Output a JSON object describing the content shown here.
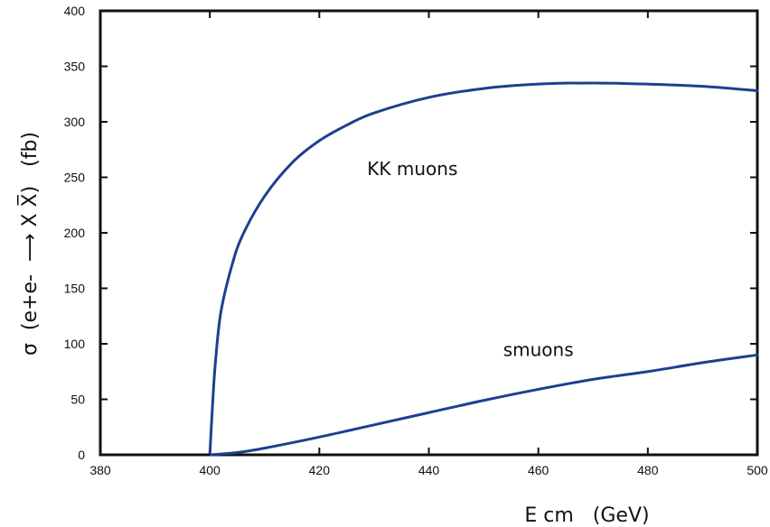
{
  "chart_data": {
    "type": "line",
    "title": "",
    "xlabel": "E cm   (GeV)",
    "ylabel": "σ  (e+e-  ⟶ X X̅)   (fb)",
    "xlim": [
      380,
      500
    ],
    "ylim": [
      0,
      400
    ],
    "xticks": [
      380,
      400,
      420,
      440,
      460,
      480,
      500
    ],
    "yticks": [
      0,
      50,
      100,
      150,
      200,
      250,
      300,
      350,
      400
    ],
    "grid": false,
    "legend": "none",
    "line_color": "#1f3f8f",
    "series": [
      {
        "name": "KK muons",
        "x": [
          400,
          400.5,
          401,
          402,
          404,
          406,
          410,
          415,
          420,
          425,
          430,
          440,
          450,
          460,
          470,
          480,
          490,
          500
        ],
        "y": [
          0,
          45,
          82,
          128,
          170,
          198,
          233,
          263,
          283,
          297,
          308,
          322,
          330,
          334,
          335,
          334,
          332,
          328
        ]
      },
      {
        "name": "smuons",
        "x": [
          400,
          405,
          410,
          420,
          430,
          440,
          450,
          460,
          470,
          480,
          490,
          500
        ],
        "y": [
          0,
          2,
          6,
          16,
          27,
          38,
          49,
          59,
          68,
          75,
          83,
          90
        ]
      }
    ],
    "annotations": [
      {
        "text": "KK muons",
        "x": 437,
        "y": 252
      },
      {
        "text": "smuons",
        "x": 460,
        "y": 89
      }
    ]
  }
}
